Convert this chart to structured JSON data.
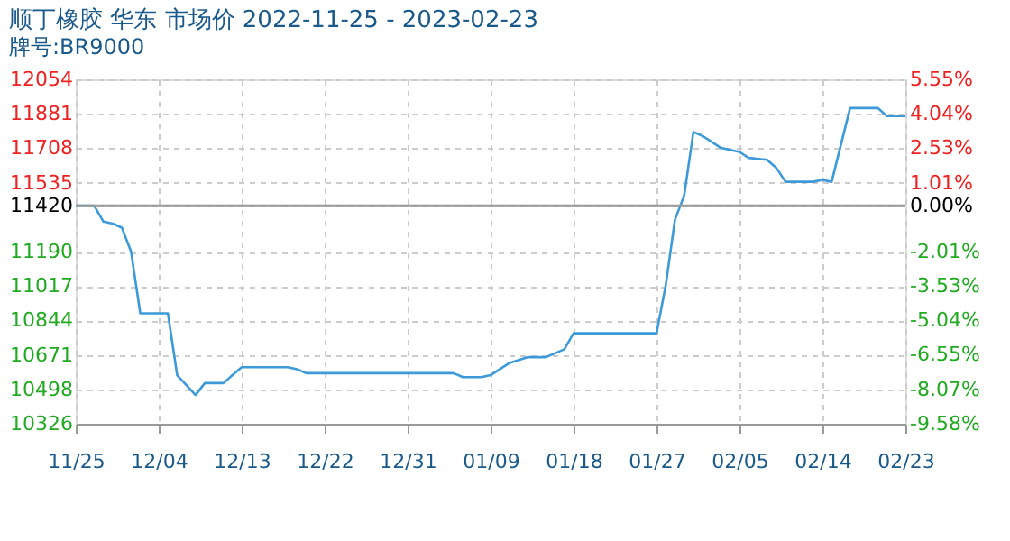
{
  "chart_data": {
    "type": "line",
    "title": "顺丁橡胶 华东 市场价 2022-11-25 - 2023-02-23",
    "subtitle": "牌号:BR9000",
    "x": [
      "2022-11-25",
      "2022-11-27",
      "2022-11-28",
      "2022-11-29",
      "2022-11-30",
      "2022-12-01",
      "2022-12-02",
      "2022-12-05",
      "2022-12-06",
      "2022-12-08",
      "2022-12-09",
      "2022-12-11",
      "2022-12-13",
      "2022-12-18",
      "2022-12-19",
      "2022-12-20",
      "2023-01-05",
      "2023-01-06",
      "2023-01-08",
      "2023-01-09",
      "2023-01-11",
      "2023-01-13",
      "2023-01-15",
      "2023-01-17",
      "2023-01-18",
      "2023-01-27",
      "2023-01-28",
      "2023-01-29",
      "2023-01-30",
      "2023-01-31",
      "2023-02-01",
      "2023-02-03",
      "2023-02-05",
      "2023-02-06",
      "2023-02-08",
      "2023-02-09",
      "2023-02-10",
      "2023-02-13",
      "2023-02-14",
      "2023-02-15",
      "2023-02-17",
      "2023-02-20",
      "2023-02-21",
      "2023-02-23"
    ],
    "series": [
      {
        "color": "#3c9ad8",
        "values": [
          11420,
          11420,
          11340,
          11330,
          11310,
          11190,
          10880,
          10880,
          10570,
          10470,
          10530,
          10530,
          10610,
          10610,
          10600,
          10580,
          10580,
          10560,
          10560,
          10570,
          10630,
          10660,
          10660,
          10700,
          10780,
          10780,
          11020,
          11350,
          11470,
          11790,
          11770,
          11710,
          11690,
          11660,
          11650,
          11610,
          11540,
          11540,
          11550,
          11540,
          11910,
          11910,
          11870,
          11870
        ]
      }
    ],
    "xlim": [
      "2022-11-25",
      "2023-02-23"
    ],
    "xticks": [
      {
        "value": "2022-11-25",
        "label": "11/25"
      },
      {
        "value": "2022-12-04",
        "label": "12/04"
      },
      {
        "value": "2022-12-13",
        "label": "12/13"
      },
      {
        "value": "2022-12-22",
        "label": "12/22"
      },
      {
        "value": "2022-12-31",
        "label": "12/31"
      },
      {
        "value": "2023-01-09",
        "label": "01/09"
      },
      {
        "value": "2023-01-18",
        "label": "01/18"
      },
      {
        "value": "2023-01-27",
        "label": "01/27"
      },
      {
        "value": "2023-02-05",
        "label": "02/05"
      },
      {
        "value": "2023-02-14",
        "label": "02/14"
      },
      {
        "value": "2023-02-23",
        "label": "02/23"
      }
    ],
    "ylim": [
      10326,
      12054
    ],
    "yticks": [
      10326,
      10498,
      10671,
      10844,
      11017,
      11190,
      11420,
      11535,
      11708,
      11881,
      12054
    ],
    "y2lim": [
      -9.58,
      5.55
    ],
    "y2ticks": [
      {
        "value": -9.58,
        "label": "-9.58%"
      },
      {
        "value": -8.07,
        "label": "-8.07%"
      },
      {
        "value": -6.55,
        "label": "-6.55%"
      },
      {
        "value": -5.04,
        "label": "-5.04%"
      },
      {
        "value": -3.53,
        "label": "-3.53%"
      },
      {
        "value": -2.01,
        "label": "-2.01%"
      },
      {
        "value": 0,
        "label": "0.00%"
      },
      {
        "value": 1.01,
        "label": "1.01%"
      },
      {
        "value": 2.53,
        "label": "2.53%"
      },
      {
        "value": 4.04,
        "label": "4.04%"
      },
      {
        "value": 5.55,
        "label": "5.55%"
      }
    ],
    "ref_lines": [
      {
        "axis": "y2",
        "value": 0,
        "color": "#999999"
      }
    ],
    "grid": true,
    "marker": "none",
    "line_style": "solid"
  }
}
